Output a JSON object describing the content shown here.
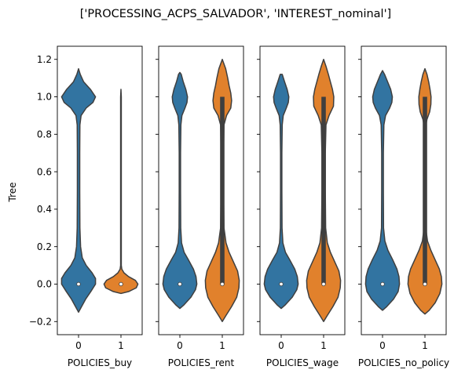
{
  "suptitle": "['PROCESSING_ACPS_SALVADOR', 'INTEREST_nominal']",
  "chart_data": {
    "type": "violin",
    "ylabel": "Tree",
    "ylim": [
      -0.27,
      1.27
    ],
    "yticks": [
      -0.2,
      0.0,
      0.2,
      0.4,
      0.6,
      0.8,
      1.0,
      1.2
    ],
    "ytick_labels": [
      "−0.2",
      "0.0",
      "0.2",
      "0.4",
      "0.6",
      "0.8",
      "1.0",
      "1.2"
    ],
    "categories": [
      "0",
      "1"
    ],
    "colors": {
      "0": "#3274a1",
      "1": "#e1812c"
    },
    "panels": [
      {
        "xlabel": "POLICIES_buy",
        "violins": [
          {
            "category": "0",
            "median": 0.0,
            "q1": 0.0,
            "q3": 0.0,
            "whisker_low": 0.0,
            "whisker_high": 0.0,
            "profile": [
              [
                -0.15,
                0.0
              ],
              [
                -0.12,
                0.18
              ],
              [
                -0.08,
                0.42
              ],
              [
                -0.04,
                0.72
              ],
              [
                0.0,
                1.0
              ],
              [
                0.03,
                1.0
              ],
              [
                0.06,
                0.8
              ],
              [
                0.1,
                0.45
              ],
              [
                0.14,
                0.22
              ],
              [
                0.2,
                0.12
              ],
              [
                0.3,
                0.08
              ],
              [
                0.5,
                0.07
              ],
              [
                0.7,
                0.07
              ],
              [
                0.85,
                0.08
              ],
              [
                0.9,
                0.15
              ],
              [
                0.94,
                0.45
              ],
              [
                0.97,
                0.85
              ],
              [
                1.0,
                1.0
              ],
              [
                1.04,
                0.7
              ],
              [
                1.08,
                0.3
              ],
              [
                1.12,
                0.1
              ],
              [
                1.15,
                0.0
              ]
            ]
          },
          {
            "category": "1",
            "median": 0.0,
            "q1": 0.0,
            "q3": 0.0,
            "whisker_low": 0.0,
            "whisker_high": 0.0,
            "profile": [
              [
                -0.05,
                0.0
              ],
              [
                -0.04,
                0.45
              ],
              [
                -0.02,
                0.9
              ],
              [
                0.0,
                1.0
              ],
              [
                0.02,
                0.85
              ],
              [
                0.04,
                0.45
              ],
              [
                0.06,
                0.18
              ],
              [
                0.08,
                0.05
              ],
              [
                0.1,
                0.02
              ],
              [
                0.2,
                0.02
              ],
              [
                0.5,
                0.02
              ],
              [
                0.8,
                0.02
              ],
              [
                1.0,
                0.02
              ],
              [
                1.04,
                0.0
              ]
            ]
          }
        ]
      },
      {
        "xlabel": "POLICIES_rent",
        "violins": [
          {
            "category": "0",
            "median": 0.0,
            "q1": 0.0,
            "q3": 0.0,
            "whisker_low": 0.0,
            "whisker_high": 0.0,
            "profile": [
              [
                -0.13,
                0.0
              ],
              [
                -0.11,
                0.25
              ],
              [
                -0.07,
                0.65
              ],
              [
                -0.03,
                0.92
              ],
              [
                0.0,
                1.0
              ],
              [
                0.04,
                0.95
              ],
              [
                0.08,
                0.8
              ],
              [
                0.13,
                0.5
              ],
              [
                0.17,
                0.25
              ],
              [
                0.22,
                0.1
              ],
              [
                0.3,
                0.05
              ],
              [
                0.5,
                0.04
              ],
              [
                0.7,
                0.04
              ],
              [
                0.85,
                0.06
              ],
              [
                0.9,
                0.12
              ],
              [
                0.94,
                0.3
              ],
              [
                0.97,
                0.42
              ],
              [
                1.0,
                0.45
              ],
              [
                1.04,
                0.35
              ],
              [
                1.08,
                0.2
              ],
              [
                1.12,
                0.08
              ],
              [
                1.13,
                0.0
              ]
            ]
          },
          {
            "category": "1",
            "median": 0.0,
            "q1": 0.0,
            "q3": 1.0,
            "whisker_low": 0.0,
            "whisker_high": 1.0,
            "profile": [
              [
                -0.2,
                0.0
              ],
              [
                -0.17,
                0.2
              ],
              [
                -0.12,
                0.55
              ],
              [
                -0.07,
                0.85
              ],
              [
                -0.02,
                0.98
              ],
              [
                0.02,
                1.0
              ],
              [
                0.07,
                0.9
              ],
              [
                0.12,
                0.65
              ],
              [
                0.17,
                0.4
              ],
              [
                0.22,
                0.22
              ],
              [
                0.3,
                0.1
              ],
              [
                0.5,
                0.07
              ],
              [
                0.7,
                0.07
              ],
              [
                0.85,
                0.1
              ],
              [
                0.9,
                0.25
              ],
              [
                0.94,
                0.5
              ],
              [
                0.98,
                0.55
              ],
              [
                1.02,
                0.5
              ],
              [
                1.06,
                0.4
              ],
              [
                1.1,
                0.32
              ],
              [
                1.15,
                0.2
              ],
              [
                1.2,
                0.0
              ]
            ]
          }
        ]
      },
      {
        "xlabel": "POLICIES_wage",
        "violins": [
          {
            "category": "0",
            "median": 0.0,
            "q1": 0.0,
            "q3": 0.0,
            "whisker_low": 0.0,
            "whisker_high": 0.0,
            "profile": [
              [
                -0.13,
                0.0
              ],
              [
                -0.11,
                0.25
              ],
              [
                -0.07,
                0.65
              ],
              [
                -0.03,
                0.92
              ],
              [
                0.0,
                1.0
              ],
              [
                0.04,
                0.95
              ],
              [
                0.08,
                0.8
              ],
              [
                0.13,
                0.5
              ],
              [
                0.17,
                0.25
              ],
              [
                0.22,
                0.1
              ],
              [
                0.3,
                0.05
              ],
              [
                0.5,
                0.04
              ],
              [
                0.7,
                0.04
              ],
              [
                0.85,
                0.06
              ],
              [
                0.9,
                0.12
              ],
              [
                0.94,
                0.3
              ],
              [
                0.97,
                0.42
              ],
              [
                1.0,
                0.45
              ],
              [
                1.04,
                0.35
              ],
              [
                1.08,
                0.2
              ],
              [
                1.12,
                0.06
              ],
              [
                1.12,
                0.0
              ]
            ]
          },
          {
            "category": "1",
            "median": 0.0,
            "q1": 0.0,
            "q3": 1.0,
            "whisker_low": 0.0,
            "whisker_high": 1.0,
            "profile": [
              [
                -0.2,
                0.0
              ],
              [
                -0.17,
                0.2
              ],
              [
                -0.12,
                0.55
              ],
              [
                -0.07,
                0.85
              ],
              [
                -0.02,
                0.98
              ],
              [
                0.02,
                1.0
              ],
              [
                0.07,
                0.9
              ],
              [
                0.12,
                0.65
              ],
              [
                0.17,
                0.4
              ],
              [
                0.22,
                0.22
              ],
              [
                0.3,
                0.12
              ],
              [
                0.5,
                0.1
              ],
              [
                0.7,
                0.1
              ],
              [
                0.85,
                0.14
              ],
              [
                0.9,
                0.32
              ],
              [
                0.95,
                0.58
              ],
              [
                1.0,
                0.6
              ],
              [
                1.04,
                0.52
              ],
              [
                1.08,
                0.4
              ],
              [
                1.12,
                0.28
              ],
              [
                1.16,
                0.15
              ],
              [
                1.2,
                0.0
              ]
            ]
          }
        ]
      },
      {
        "xlabel": "POLICIES_no_policy",
        "violins": [
          {
            "category": "0",
            "median": 0.0,
            "q1": 0.0,
            "q3": 0.0,
            "whisker_low": 0.0,
            "whisker_high": 0.0,
            "profile": [
              [
                -0.14,
                0.0
              ],
              [
                -0.12,
                0.25
              ],
              [
                -0.08,
                0.65
              ],
              [
                -0.04,
                0.92
              ],
              [
                0.0,
                1.0
              ],
              [
                0.04,
                0.97
              ],
              [
                0.08,
                0.85
              ],
              [
                0.13,
                0.6
              ],
              [
                0.18,
                0.32
              ],
              [
                0.23,
                0.14
              ],
              [
                0.3,
                0.06
              ],
              [
                0.5,
                0.05
              ],
              [
                0.7,
                0.05
              ],
              [
                0.85,
                0.08
              ],
              [
                0.9,
                0.18
              ],
              [
                0.94,
                0.42
              ],
              [
                0.97,
                0.55
              ],
              [
                1.0,
                0.58
              ],
              [
                1.04,
                0.48
              ],
              [
                1.08,
                0.3
              ],
              [
                1.12,
                0.12
              ],
              [
                1.14,
                0.0
              ]
            ]
          },
          {
            "category": "1",
            "median": 0.0,
            "q1": 0.0,
            "q3": 1.0,
            "whisker_low": 0.0,
            "whisker_high": 1.0,
            "profile": [
              [
                -0.16,
                0.0
              ],
              [
                -0.14,
                0.25
              ],
              [
                -0.1,
                0.6
              ],
              [
                -0.05,
                0.88
              ],
              [
                0.0,
                1.0
              ],
              [
                0.04,
                0.97
              ],
              [
                0.08,
                0.85
              ],
              [
                0.13,
                0.6
              ],
              [
                0.18,
                0.35
              ],
              [
                0.23,
                0.15
              ],
              [
                0.3,
                0.05
              ],
              [
                0.5,
                0.02
              ],
              [
                0.7,
                0.02
              ],
              [
                0.85,
                0.06
              ],
              [
                0.88,
                0.12
              ],
              [
                0.92,
                0.28
              ],
              [
                0.96,
                0.35
              ],
              [
                1.0,
                0.36
              ],
              [
                1.04,
                0.3
              ],
              [
                1.08,
                0.22
              ],
              [
                1.12,
                0.12
              ],
              [
                1.15,
                0.0
              ]
            ]
          }
        ]
      }
    ]
  }
}
